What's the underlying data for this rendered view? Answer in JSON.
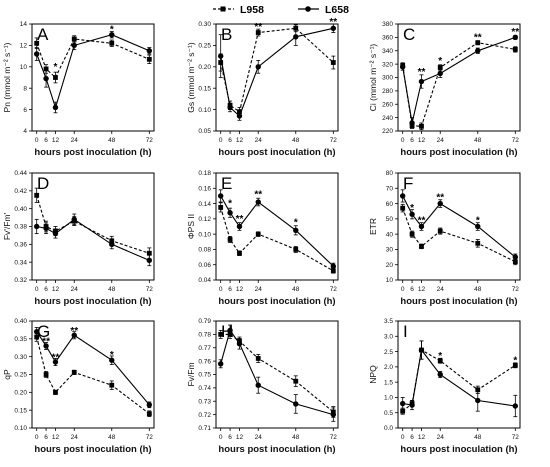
{
  "legend": [
    {
      "name": "L958",
      "marker": "square",
      "dash": true
    },
    {
      "name": "L658",
      "marker": "circle",
      "dash": false
    }
  ],
  "chart_data": [
    {
      "letter": "A",
      "type": "line",
      "ylabel": "Pn (mmol m⁻² s⁻¹)",
      "xlabel": "hours post inoculation (h)",
      "x": [
        0,
        6,
        12,
        24,
        48,
        72
      ],
      "ylim": [
        4,
        14
      ],
      "yticks": [
        4,
        6,
        8,
        10,
        12,
        14
      ],
      "series": [
        {
          "name": "L958",
          "values": [
            12.2,
            9.8,
            9.0,
            12.6,
            12.2,
            10.7
          ],
          "err": [
            0.5,
            0.4,
            0.5,
            0.3,
            0.3,
            0.4
          ]
        },
        {
          "name": "L658",
          "values": [
            11.2,
            8.9,
            6.2,
            12.0,
            13.0,
            11.5
          ],
          "err": [
            0.6,
            0.8,
            0.5,
            0.4,
            0.3,
            0.3
          ]
        }
      ],
      "stars": [
        {
          "x": 12,
          "y": 10.0,
          "text": "*"
        },
        {
          "x": 48,
          "y": 13.5,
          "text": "*"
        }
      ]
    },
    {
      "letter": "B",
      "type": "line",
      "ylabel": "Gs (mmol m⁻² s⁻¹)",
      "xlabel": "hours post inoculation (h)",
      "x": [
        0,
        6,
        12,
        24,
        48,
        72
      ],
      "ylim": [
        0.05,
        0.3
      ],
      "yticks": [
        0.05,
        0.1,
        0.15,
        0.2,
        0.25,
        0.3
      ],
      "ytickLabels": [
        "0.05",
        "0.10",
        "0.15",
        "0.20",
        "0.25",
        "0.30"
      ],
      "series": [
        {
          "name": "L958",
          "values": [
            0.21,
            0.11,
            0.095,
            0.28,
            0.29,
            0.21
          ],
          "err": [
            0.02,
            0.01,
            0.01,
            0.008,
            0.008,
            0.015
          ]
        },
        {
          "name": "L658",
          "values": [
            0.225,
            0.105,
            0.085,
            0.2,
            0.27,
            0.29
          ],
          "err": [
            0.05,
            0.01,
            0.01,
            0.015,
            0.02,
            0.01
          ]
        }
      ],
      "stars": [
        {
          "x": 24,
          "y": 0.293,
          "text": "**"
        },
        {
          "x": 72,
          "y": 0.305,
          "text": "**"
        }
      ]
    },
    {
      "letter": "C",
      "type": "line",
      "ylabel": "Ci (mmol m⁻² s⁻¹)",
      "xlabel": "hours post inoculation (h)",
      "x": [
        0,
        6,
        12,
        24,
        48,
        72
      ],
      "ylim": [
        220,
        380
      ],
      "yticks": [
        220,
        240,
        260,
        280,
        300,
        320,
        340,
        360,
        380
      ],
      "series": [
        {
          "name": "L958",
          "values": [
            318,
            228,
            227,
            315,
            352,
            342
          ],
          "err": [
            4,
            4,
            5,
            4,
            3,
            4
          ]
        },
        {
          "name": "L658",
          "values": [
            316,
            232,
            294,
            306,
            340,
            360
          ],
          "err": [
            5,
            8,
            10,
            6,
            4,
            3
          ]
        }
      ],
      "stars": [
        {
          "x": 12,
          "y": 308,
          "text": "**"
        },
        {
          "x": 24,
          "y": 325,
          "text": "*"
        },
        {
          "x": 48,
          "y": 360,
          "text": "**"
        },
        {
          "x": 72,
          "y": 368,
          "text": "**"
        }
      ]
    },
    {
      "letter": "D",
      "type": "line",
      "ylabel": "Fv'/Fm'",
      "xlabel": "hours post inoculation (h)",
      "x": [
        0,
        6,
        12,
        24,
        48,
        72
      ],
      "ylim": [
        0.32,
        0.44
      ],
      "yticks": [
        0.32,
        0.34,
        0.36,
        0.38,
        0.4,
        0.42,
        0.44
      ],
      "ytickLabels": [
        "0.32",
        "0.34",
        "0.36",
        "0.38",
        "0.40",
        "0.42",
        "0.44"
      ],
      "series": [
        {
          "name": "L958",
          "values": [
            0.415,
            0.38,
            0.375,
            0.386,
            0.364,
            0.35
          ],
          "err": [
            0.008,
            0.006,
            0.005,
            0.005,
            0.005,
            0.006
          ]
        },
        {
          "name": "L658",
          "values": [
            0.38,
            0.378,
            0.372,
            0.388,
            0.36,
            0.342
          ],
          "err": [
            0.008,
            0.006,
            0.005,
            0.006,
            0.005,
            0.006
          ]
        }
      ],
      "stars": []
    },
    {
      "letter": "E",
      "type": "line",
      "ylabel": "ΦPS II",
      "xlabel": "hours post inoculation (h)",
      "x": [
        0,
        6,
        12,
        24,
        48,
        72
      ],
      "ylim": [
        0.04,
        0.18
      ],
      "yticks": [
        0.04,
        0.06,
        0.08,
        0.1,
        0.12,
        0.14,
        0.16,
        0.18
      ],
      "ytickLabels": [
        "0.04",
        "0.06",
        "0.08",
        "0.10",
        "0.12",
        "0.14",
        "0.16",
        "0.18"
      ],
      "series": [
        {
          "name": "L958",
          "values": [
            0.135,
            0.093,
            0.075,
            0.1,
            0.08,
            0.052
          ],
          "err": [
            0.006,
            0.004,
            0.003,
            0.003,
            0.004,
            0.003
          ]
        },
        {
          "name": "L658",
          "values": [
            0.15,
            0.128,
            0.11,
            0.142,
            0.105,
            0.058
          ],
          "err": [
            0.008,
            0.006,
            0.005,
            0.005,
            0.006,
            0.004
          ]
        }
      ],
      "stars": [
        {
          "x": 6,
          "y": 0.14,
          "text": "*"
        },
        {
          "x": 12,
          "y": 0.12,
          "text": "**"
        },
        {
          "x": 24,
          "y": 0.152,
          "text": "**"
        },
        {
          "x": 48,
          "y": 0.115,
          "text": "*"
        }
      ]
    },
    {
      "letter": "F",
      "type": "line",
      "ylabel": "ETR",
      "xlabel": "hours post inoculation (h)",
      "x": [
        0,
        6,
        12,
        24,
        48,
        72
      ],
      "ylim": [
        10,
        80
      ],
      "yticks": [
        10,
        20,
        30,
        40,
        50,
        60,
        70,
        80
      ],
      "series": [
        {
          "name": "L958",
          "values": [
            57,
            40,
            32,
            42,
            34,
            22
          ],
          "err": [
            2.5,
            2,
            1.5,
            2,
            2.5,
            2
          ]
        },
        {
          "name": "L658",
          "values": [
            65,
            53,
            45,
            60,
            45,
            25
          ],
          "err": [
            4,
            3,
            2.5,
            2.5,
            2.5,
            2
          ]
        }
      ],
      "stars": [
        {
          "x": 6,
          "y": 57,
          "text": "*"
        },
        {
          "x": 12,
          "y": 49,
          "text": "**"
        },
        {
          "x": 24,
          "y": 64,
          "text": "**"
        },
        {
          "x": 48,
          "y": 49,
          "text": "*"
        }
      ]
    },
    {
      "letter": "G",
      "type": "line",
      "ylabel": "qP",
      "xlabel": "hours post inoculation (h)",
      "x": [
        0,
        6,
        12,
        24,
        48,
        72
      ],
      "ylim": [
        0.1,
        0.4
      ],
      "yticks": [
        0.1,
        0.15,
        0.2,
        0.25,
        0.3,
        0.35,
        0.4
      ],
      "ytickLabels": [
        "0.10",
        "0.15",
        "0.20",
        "0.25",
        "0.30",
        "0.35",
        "0.40"
      ],
      "series": [
        {
          "name": "L958",
          "values": [
            0.355,
            0.25,
            0.2,
            0.256,
            0.22,
            0.14
          ],
          "err": [
            0.012,
            0.008,
            0.006,
            0.006,
            0.012,
            0.008
          ]
        },
        {
          "name": "L658",
          "values": [
            0.37,
            0.33,
            0.285,
            0.36,
            0.29,
            0.165
          ],
          "err": [
            0.012,
            0.01,
            0.01,
            0.01,
            0.012,
            0.008
          ]
        }
      ],
      "stars": [
        {
          "x": 6,
          "y": 0.342,
          "text": "**"
        },
        {
          "x": 12,
          "y": 0.297,
          "text": "**"
        },
        {
          "x": 24,
          "y": 0.372,
          "text": "**"
        },
        {
          "x": 48,
          "y": 0.304,
          "text": "*"
        }
      ]
    },
    {
      "letter": "H",
      "type": "line",
      "ylabel": "Fv/Fm",
      "xlabel": "hours post inoculation (h)",
      "x": [
        0,
        6,
        12,
        24,
        48,
        72
      ],
      "ylim": [
        0.71,
        0.79
      ],
      "yticks": [
        0.71,
        0.72,
        0.73,
        0.74,
        0.75,
        0.76,
        0.77,
        0.78,
        0.79
      ],
      "series": [
        {
          "name": "L958",
          "values": [
            0.78,
            0.78,
            0.775,
            0.762,
            0.745,
            0.722
          ],
          "err": [
            0.003,
            0.003,
            0.003,
            0.003,
            0.004,
            0.004
          ]
        },
        {
          "name": "L658",
          "values": [
            0.758,
            0.783,
            0.773,
            0.742,
            0.728,
            0.72
          ],
          "err": [
            0.003,
            0.004,
            0.004,
            0.006,
            0.007,
            0.005
          ]
        }
      ],
      "stars": []
    },
    {
      "letter": "I",
      "type": "line",
      "ylabel": "NPQ",
      "xlabel": "hours post inoculation (h)",
      "x": [
        0,
        6,
        12,
        24,
        48,
        72
      ],
      "ylim": [
        0,
        3.5
      ],
      "yticks": [
        0,
        0.5,
        1,
        1.5,
        2,
        2.5,
        3,
        3.5
      ],
      "ytickLabels": [
        "0.0",
        "0.5",
        "1.0",
        "1.5",
        "2.0",
        "2.5",
        "3.0",
        "3.5"
      ],
      "series": [
        {
          "name": "L958",
          "values": [
            0.55,
            0.8,
            2.55,
            2.2,
            1.25,
            2.05
          ],
          "err": [
            0.1,
            0.1,
            0.3,
            0.08,
            0.12,
            0.08
          ]
        },
        {
          "name": "L658",
          "values": [
            0.8,
            0.75,
            2.55,
            1.75,
            0.9,
            0.72
          ],
          "err": [
            0.2,
            0.15,
            0.3,
            0.1,
            0.35,
            0.35
          ]
        }
      ],
      "stars": [
        {
          "x": 24,
          "y": 2.35,
          "text": "*"
        },
        {
          "x": 72,
          "y": 2.2,
          "text": "*"
        }
      ]
    }
  ]
}
